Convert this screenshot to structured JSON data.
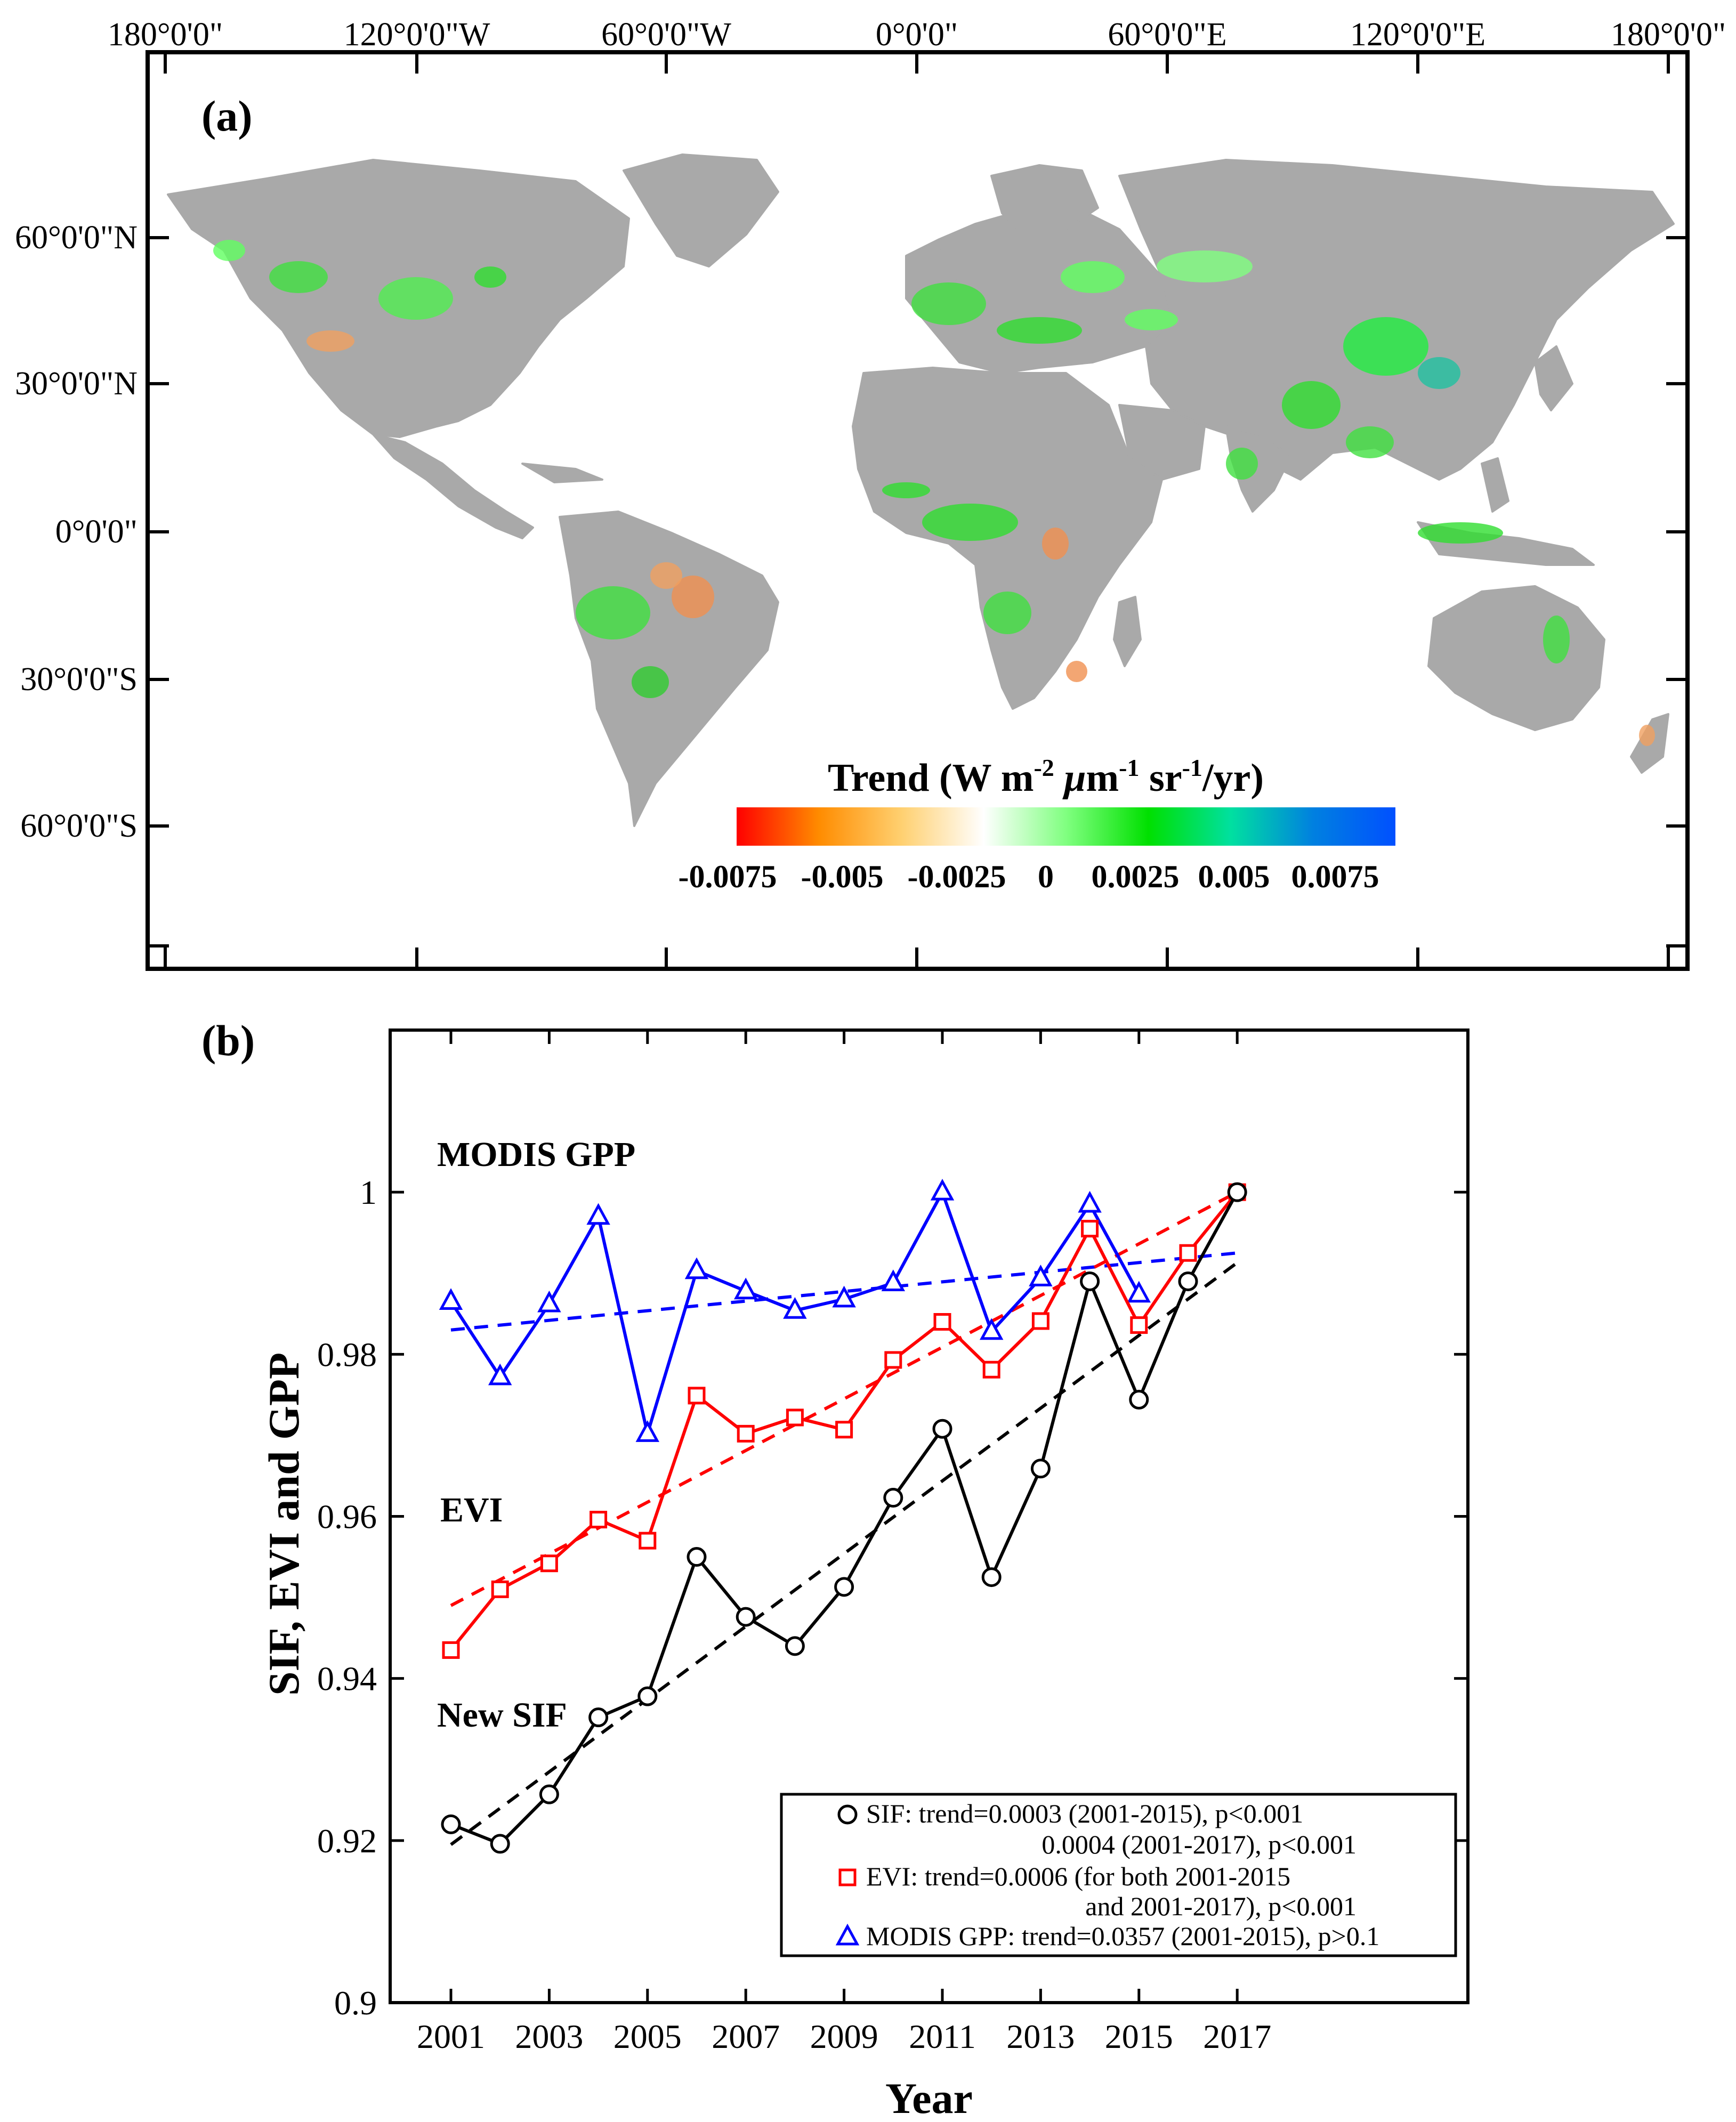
{
  "panel_a": {
    "label": "(a)",
    "top_ticks": [
      "180°0'0\"",
      "120°0'0\"W",
      "60°0'0\"W",
      "0°0'0\"",
      "60°0'0\"E",
      "120°0'0\"E",
      "180°0'0\""
    ],
    "left_ticks": [
      "60°0'0\"N",
      "30°0'0\"N",
      "0°0'0\"",
      "30°0'0\"S",
      "60°0'0\"S"
    ],
    "colorbar": {
      "title_main": "Trend (W m",
      "title_sup1": "-2",
      "title_mu": " μ",
      "title_m": "m",
      "title_sup2": "-1",
      "title_sr": " sr",
      "title_sup3": "-1",
      "title_end": "/yr)",
      "ticks": [
        "-0.0075",
        "-0.005",
        "-0.0025",
        "0",
        "0.0025",
        "0.005",
        "0.0075"
      ],
      "colors": [
        "#ff0000",
        "#ff8c00",
        "#ffd070",
        "#ffffff",
        "#80ff80",
        "#00e000",
        "#00e0a0",
        "#0080e0",
        "#0050ff"
      ]
    },
    "land_color": "#a9a9a9",
    "ocean_color": "#ffffff"
  },
  "panel_b": {
    "label": "(b)",
    "annotations": {
      "gpp": "MODIS GPP",
      "evi": "EVI",
      "sif": "New SIF"
    },
    "legend": [
      {
        "marker": "circle",
        "color": "#000000",
        "name": "SIF",
        "line1": ": trend=0.0003 (2001-2015), p<0.001",
        "line2": "0.0004 (2001-2017), p<0.001"
      },
      {
        "marker": "square",
        "color": "#ff0000",
        "name": "EVI",
        "line1": ": trend=0.0006 (for both 2001-2015",
        "line2": "and 2001-2017), p<0.001"
      },
      {
        "marker": "triangle",
        "color": "#0000ff",
        "name": "MODIS GPP",
        "line1": ": trend=0.0357 (2001-2015), p>0.1",
        "line2": ""
      }
    ]
  },
  "chart_data": {
    "type": "line",
    "xlabel": "Year",
    "ylabel": "SIF, EVI and GPP",
    "xlim": [
      2000,
      2018
    ],
    "ylim": [
      0.9,
      1.02
    ],
    "xticks": [
      2001,
      2003,
      2005,
      2007,
      2009,
      2011,
      2013,
      2015,
      2017
    ],
    "yticks": [
      0.9,
      0.92,
      0.94,
      0.96,
      0.98,
      1
    ],
    "ytick_labels": [
      "0.9",
      "0.92",
      "0.94",
      "0.96",
      "0.98",
      "1"
    ],
    "series": [
      {
        "name": "SIF",
        "color": "#000000",
        "marker": "circle",
        "x": [
          2001,
          2002,
          2003,
          2004,
          2005,
          2006,
          2007,
          2008,
          2009,
          2010,
          2011,
          2012,
          2013,
          2014,
          2015,
          2016,
          2017
        ],
        "values": [
          0.922,
          0.9196,
          0.9257,
          0.9352,
          0.9378,
          0.955,
          0.9476,
          0.944,
          0.9513,
          0.9623,
          0.9708,
          0.9525,
          0.9659,
          0.989,
          0.9744,
          0.989,
          1.0
        ],
        "trend": {
          "x": [
            2001,
            2017
          ],
          "y": [
            0.9195,
            0.9913
          ]
        }
      },
      {
        "name": "EVI",
        "color": "#ff0000",
        "marker": "square",
        "x": [
          2001,
          2002,
          2003,
          2004,
          2005,
          2006,
          2007,
          2008,
          2009,
          2010,
          2011,
          2012,
          2013,
          2014,
          2015,
          2016,
          2017
        ],
        "values": [
          0.9435,
          0.951,
          0.9542,
          0.9596,
          0.957,
          0.9749,
          0.9702,
          0.9722,
          0.9707,
          0.9793,
          0.984,
          0.9781,
          0.9841,
          0.9955,
          0.9836,
          0.9925,
          1.0
        ],
        "trend": {
          "x": [
            2001,
            2017
          ],
          "y": [
            0.949,
            1.0
          ]
        }
      },
      {
        "name": "MODIS GPP",
        "color": "#0000ff",
        "marker": "triangle",
        "x": [
          2001,
          2002,
          2003,
          2004,
          2005,
          2006,
          2007,
          2008,
          2009,
          2010,
          2011,
          2012,
          2013,
          2014,
          2015
        ],
        "values": [
          0.9865,
          0.9772,
          0.9862,
          0.997,
          0.9702,
          0.9903,
          0.9878,
          0.9854,
          0.9868,
          0.9888,
          1.0,
          0.9828,
          0.9894,
          0.9985,
          0.9874
        ],
        "trend": {
          "x": [
            2001,
            2017
          ],
          "y": [
            0.983,
            0.9925
          ]
        }
      }
    ]
  }
}
